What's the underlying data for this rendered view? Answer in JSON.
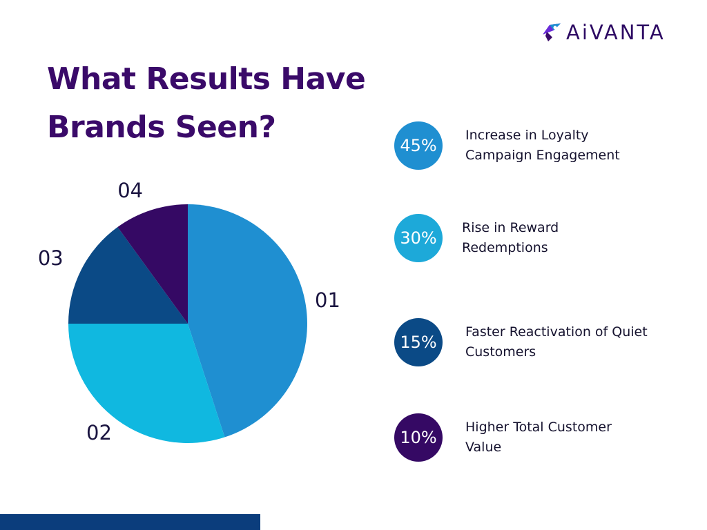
{
  "brand": {
    "name": "AiVANTA",
    "logo_icon": "rocket-logo-icon"
  },
  "headline": {
    "line1": "What Results Have",
    "line2": "Brands Seen?"
  },
  "colors": {
    "slice_01": "#1f8fd1",
    "slice_02": "#10b8e0",
    "slice_03": "#0b4a86",
    "slice_04": "#350964",
    "bottom_bar": "#0b3d7c",
    "title": "#3a0a69"
  },
  "chart_data": {
    "type": "pie",
    "title": "",
    "categories": [
      "01",
      "02",
      "03",
      "04"
    ],
    "values": [
      45,
      30,
      15,
      10
    ],
    "unit": "%",
    "start_angle": "12 o'clock",
    "direction": "clockwise",
    "legend": "right"
  },
  "stats": [
    {
      "value": "45%",
      "text": "Increase in Loyalty Campaign Engagement",
      "color": "#1f8fd1"
    },
    {
      "value": "30%",
      "text": "Rise in Reward Redemptions",
      "color": "#1da9d9"
    },
    {
      "value": "15%",
      "text": "Faster Reactivation of Quiet Customers",
      "color": "#0b4a86"
    },
    {
      "value": "10%",
      "text": "Higher Total Customer Value",
      "color": "#350964"
    }
  ]
}
